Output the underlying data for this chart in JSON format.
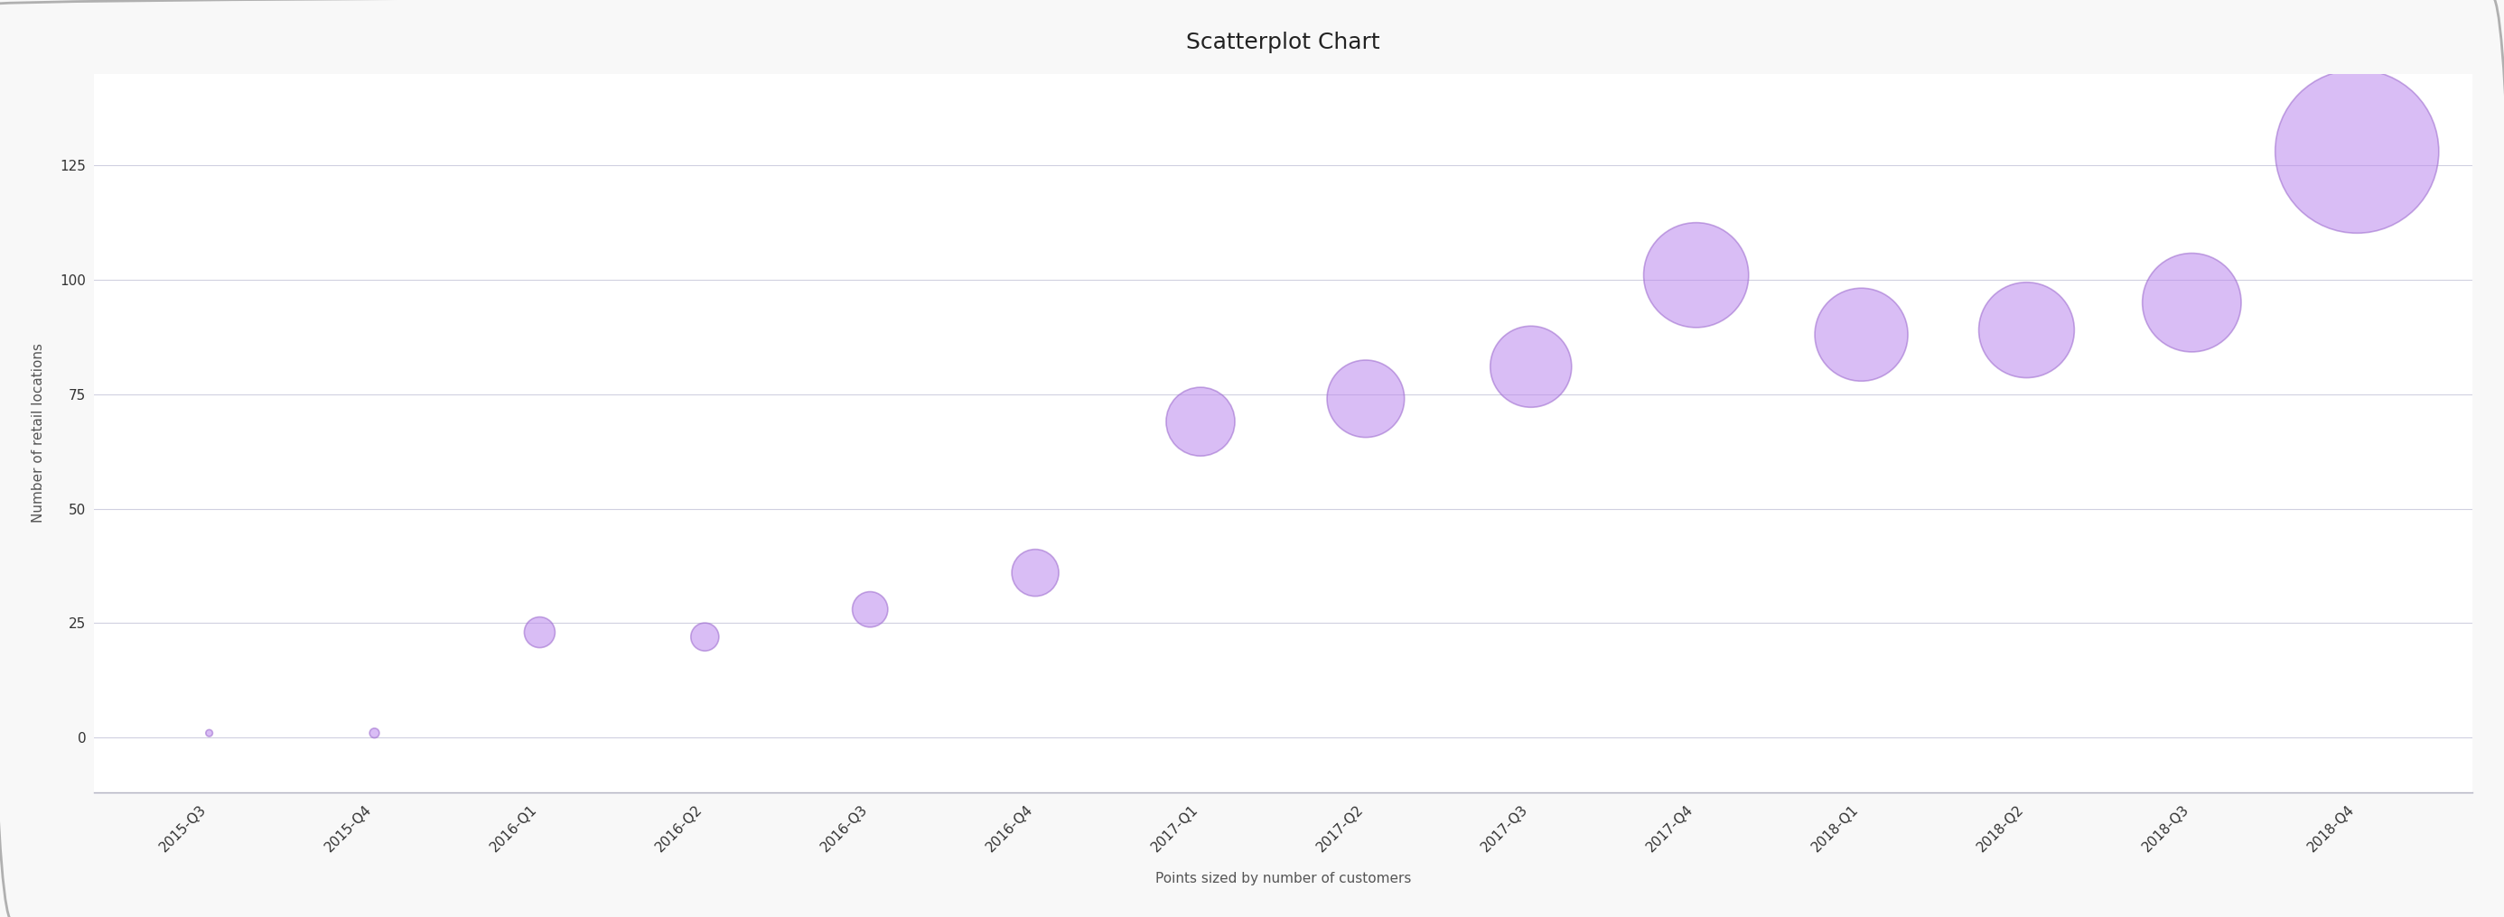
{
  "title": "Scatterplot Chart",
  "xlabel": "Points sized by number of customers",
  "ylabel": "Number of retail locations",
  "categories": [
    "2015-Q3",
    "2015-Q4",
    "2016-Q1",
    "2016-Q2",
    "2016-Q3",
    "2016-Q4",
    "2017-Q1",
    "2017-Q2",
    "2017-Q3",
    "2017-Q4",
    "2018-Q1",
    "2018-Q2",
    "2018-Q3",
    "2018-Q4"
  ],
  "y_values": [
    1,
    1,
    23,
    22,
    28,
    36,
    69,
    74,
    81,
    101,
    88,
    89,
    95,
    128
  ],
  "sizes": [
    30,
    60,
    600,
    500,
    800,
    1400,
    3000,
    3800,
    4200,
    7000,
    5500,
    5800,
    6200,
    17000
  ],
  "dot_color": "#bb88ee",
  "dot_alpha": 0.55,
  "dot_edge_color": "#9966cc",
  "dot_edge_linewidth": 1.2,
  "background_color": "#f8f8f8",
  "plot_bg_color": "#ffffff",
  "grid_color": "#d0d0e0",
  "border_color": "#cccccc",
  "ylim": [
    -12,
    145
  ],
  "yticks": [
    0,
    25,
    50,
    75,
    100,
    125
  ],
  "title_fontsize": 18,
  "axis_label_fontsize": 11,
  "tick_fontsize": 11,
  "tick_color": "#333333"
}
